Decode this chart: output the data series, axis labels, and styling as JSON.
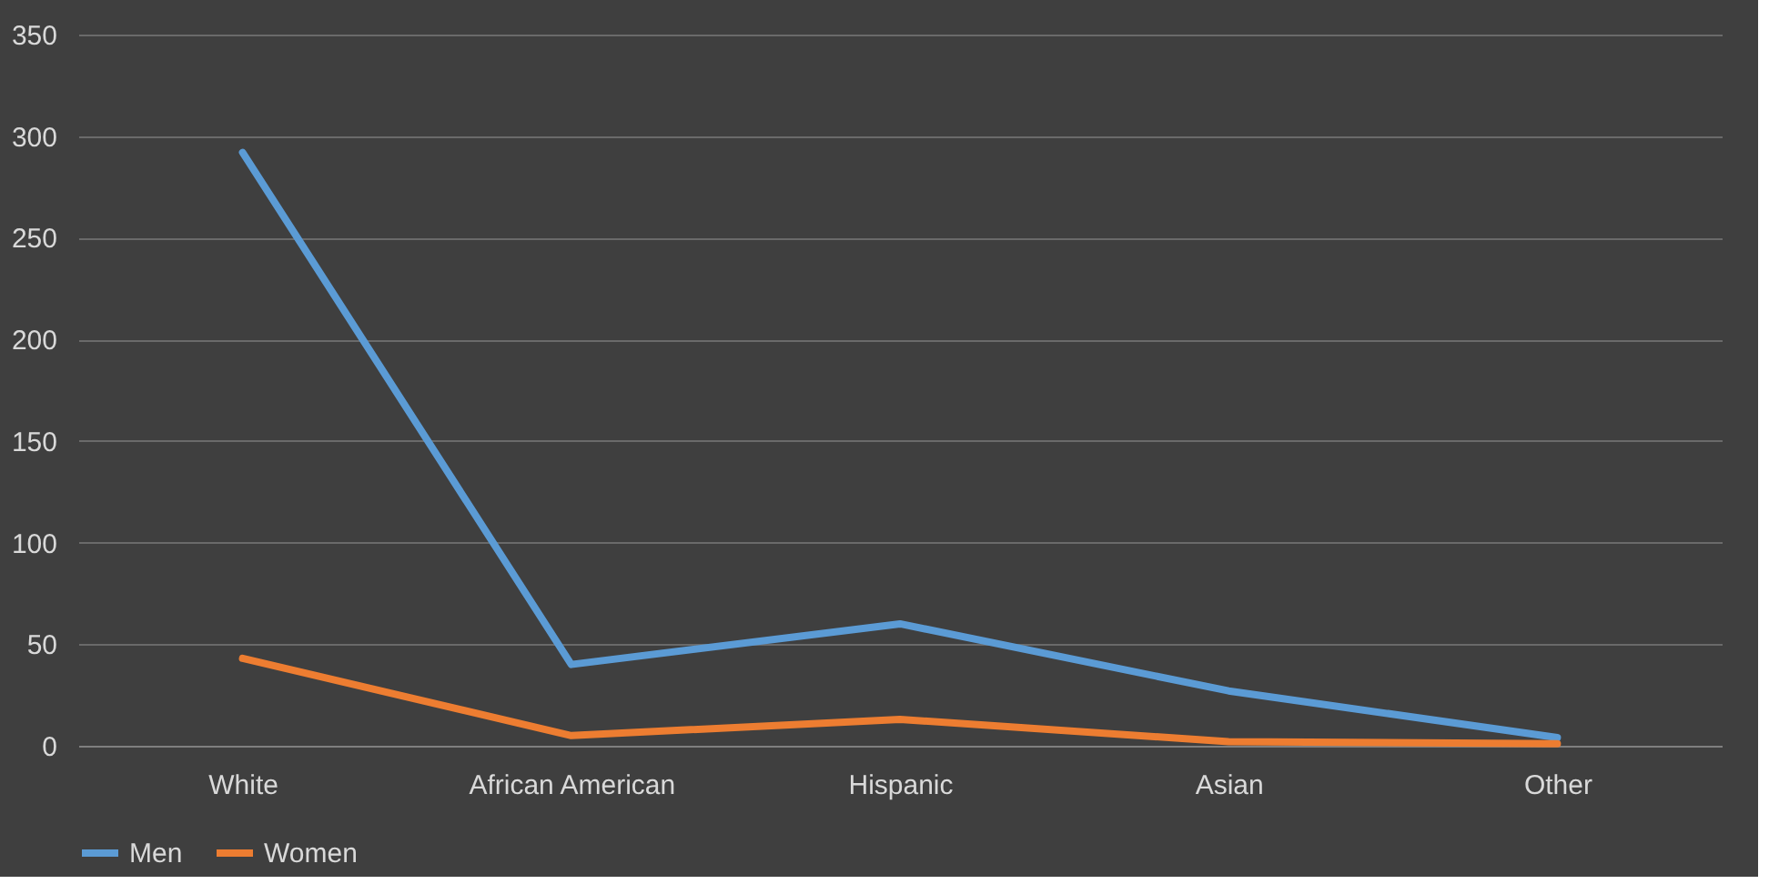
{
  "chart_data": {
    "type": "line",
    "categories": [
      "White",
      "African American",
      "Hispanic",
      "Asian",
      "Other"
    ],
    "series": [
      {
        "name": "Men",
        "color": "#5b9bd5",
        "values": [
          292,
          40,
          60,
          27,
          4
        ]
      },
      {
        "name": "Women",
        "color": "#ed7d31",
        "values": [
          43,
          5,
          13,
          2,
          1
        ]
      }
    ],
    "ylim": [
      0,
      350
    ],
    "yticks": [
      0,
      50,
      100,
      150,
      200,
      250,
      300,
      350
    ],
    "grid": "y",
    "legend": "bottom",
    "marker": "none",
    "line_style": "solid"
  }
}
